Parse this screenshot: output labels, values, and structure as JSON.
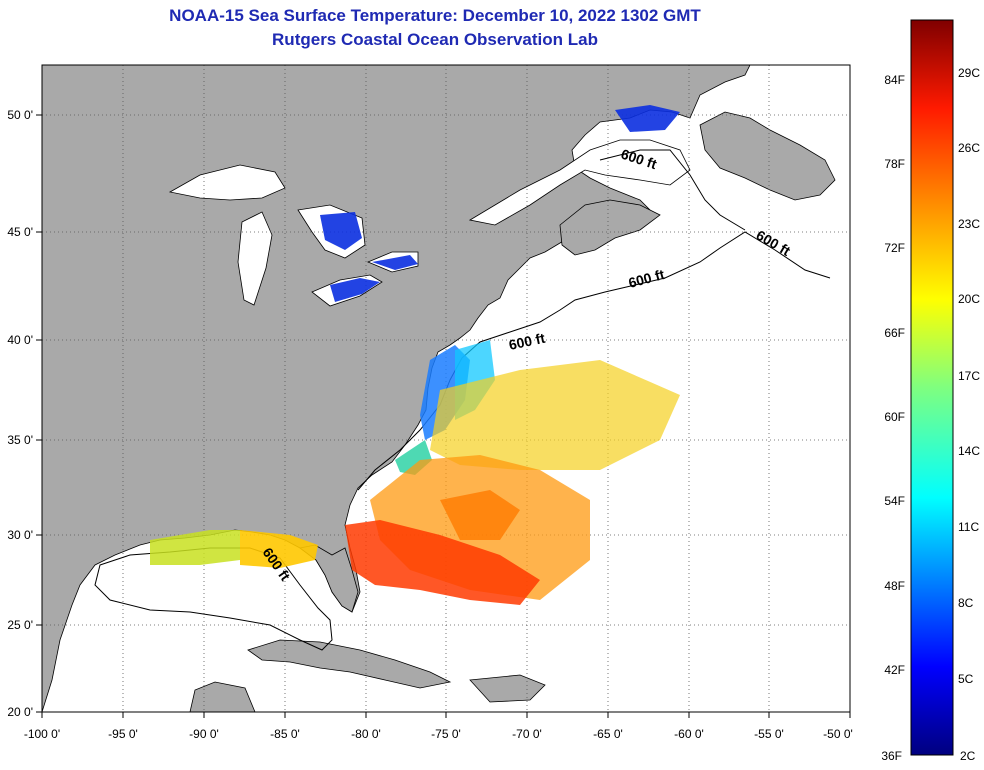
{
  "title": "NOAA-15 Sea Surface Temperature:  December 10, 2022 1302 GMT",
  "subtitle": "Rutgers Coastal Ocean Observation Lab",
  "map": {
    "lon_ticks": [
      "-100 0'",
      "-95 0'",
      "-90 0'",
      "-85 0'",
      "-80 0'",
      "-75 0'",
      "-70 0'",
      "-65 0'",
      "-60 0'",
      "-55 0'",
      "-50 0'"
    ],
    "lat_ticks": [
      "50 0'",
      "45 0'",
      "40 0'",
      "35 0'",
      "30 0'",
      "25 0'",
      "20 0'"
    ],
    "isobath_labels": [
      "600 ft",
      "600 ft",
      "600 ft",
      "600 ft",
      "600 ft"
    ],
    "colors": {
      "land": "#a9a9a9",
      "ocean": "#ffffff",
      "cold": "#0b2fe0",
      "warm": "#ff3a00"
    }
  },
  "colorbar": {
    "fahrenheit_labels": [
      "84F",
      "78F",
      "72F",
      "66F",
      "60F",
      "54F",
      "48F",
      "42F",
      "36F"
    ],
    "celsius_labels": [
      "29C",
      "26C",
      "23C",
      "20C",
      "17C",
      "14C",
      "11C",
      "8C",
      "5C",
      "2C"
    ]
  }
}
